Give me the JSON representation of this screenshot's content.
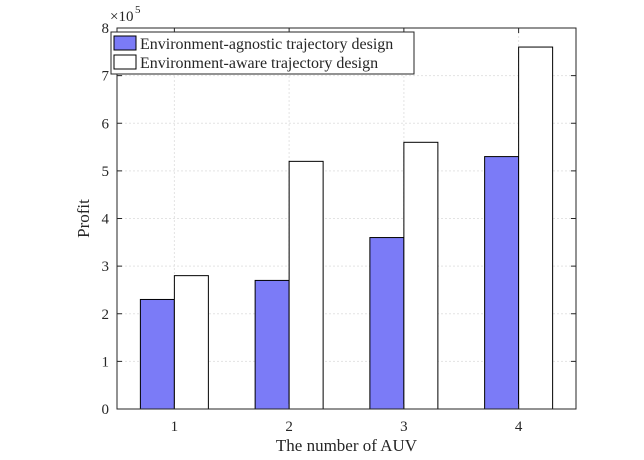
{
  "chart_data": {
    "type": "bar",
    "xlabel": "The number of AUV",
    "ylabel": "Profit",
    "exponent_base": "×10",
    "exponent_power": "5",
    "categories": [
      "1",
      "2",
      "3",
      "4"
    ],
    "ylim": [
      0,
      8
    ],
    "yticks": [
      0,
      1,
      2,
      3,
      4,
      5,
      6,
      7,
      8
    ],
    "grid": true,
    "legend_position": "top-left",
    "series": [
      {
        "name": "Environment-agnostic trajectory design",
        "color": "#7b7bf7",
        "values": [
          2.3,
          2.7,
          3.6,
          5.3
        ]
      },
      {
        "name": "Environment-aware trajectory design",
        "color": "#ffffff",
        "values": [
          2.8,
          5.2,
          5.6,
          7.6
        ]
      }
    ]
  }
}
